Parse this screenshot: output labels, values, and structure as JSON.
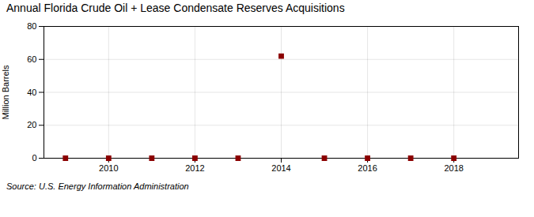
{
  "chart_data": {
    "type": "scatter",
    "title": "Annual Florida Crude Oil + Lease Condensate Reserves Acquisitions",
    "ylabel": "Million Barrels",
    "caption": "Source: U.S. Energy Information Administration",
    "x": [
      2009,
      2010,
      2011,
      2012,
      2013,
      2014,
      2015,
      2016,
      2017,
      2018
    ],
    "values": [
      0,
      0,
      0,
      0,
      0,
      62,
      0,
      0,
      0,
      0
    ],
    "xlim": [
      2008.5,
      2019.5
    ],
    "xticks": [
      2010,
      2012,
      2014,
      2016,
      2018
    ],
    "ylim": [
      0,
      80
    ],
    "yticks": [
      0,
      20,
      40,
      60,
      80
    ],
    "grid": true,
    "color": "#8b0000",
    "marker": "square"
  }
}
